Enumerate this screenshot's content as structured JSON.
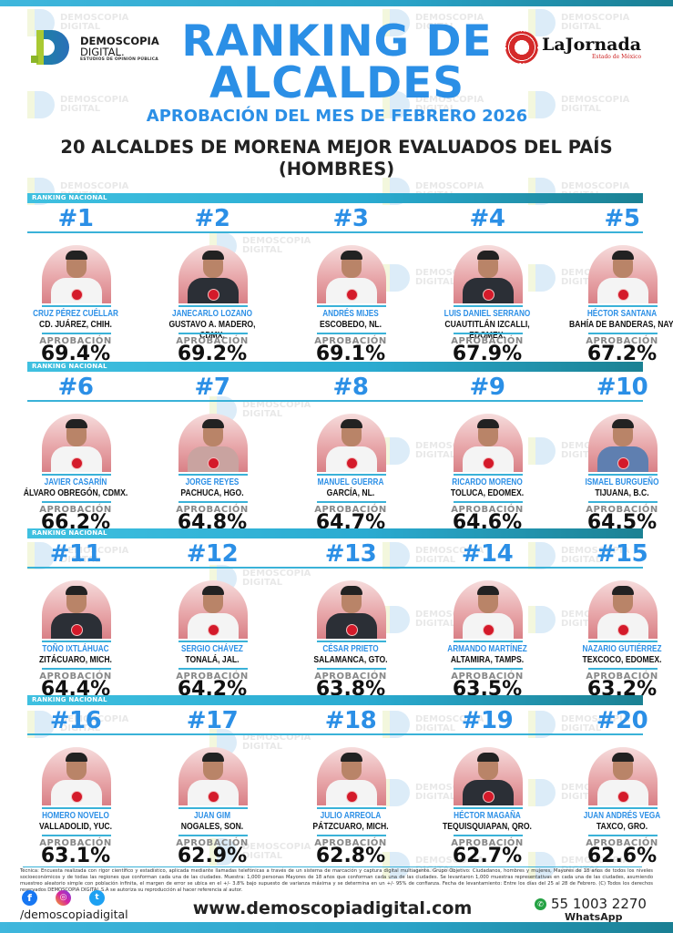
{
  "header": {
    "logo": {
      "line1": "DEMOSCOPIA",
      "line2": "DIGITAL.",
      "tagline": "ESTUDIOS DE OPINIÓN PÚBLICA"
    },
    "title_line1": "RANKING DE",
    "title_line2": "ALCALDES",
    "subtitle": "APROBACIÓN DEL MES DE FEBRERO 2026",
    "headline_line1": "20 ALCALDES DE MORENA MEJOR EVALUADOS DEL PAÍS",
    "headline_line2": "(HOMBRES)",
    "partner": {
      "name": "LaJornada",
      "sub": "Estado de México"
    }
  },
  "watermark": {
    "line1": "DEMOSCOPIA",
    "line2": "DIGITAL"
  },
  "section_label": "RANKING NACIONAL",
  "approval_label": "APROBACIÓN",
  "colors": {
    "accent_blue": "#2b8fe6",
    "bar_cyan": "#3fc0e0",
    "bar_teal": "#1b8193",
    "badge_red": "#d41a2a"
  },
  "rows": [
    {
      "mayors": [
        {
          "rank": "#1",
          "name": "CRUZ PÉREZ CUÉLLAR",
          "city": "CD. JUÁREZ, CHIH.",
          "approval": "69.4%",
          "attire": "light"
        },
        {
          "rank": "#2",
          "name": "JANECARLO LOZANO",
          "city": "GUSTAVO A. MADERO, CDMX.",
          "approval": "69.2%",
          "attire": "dark"
        },
        {
          "rank": "#3",
          "name": "ANDRÉS MIJES",
          "city": "ESCOBEDO, NL.",
          "approval": "69.1%",
          "attire": "light"
        },
        {
          "rank": "#4",
          "name": "LUIS DANIEL SERRANO",
          "city": "CUAUTITLÁN IZCALLI, EDOMEX.",
          "approval": "67.9%",
          "attire": "dark"
        },
        {
          "rank": "#5",
          "name": "HÉCTOR SANTANA",
          "city": "BAHÍA DE BANDERAS, NAY.",
          "approval": "67.2%",
          "attire": "light"
        }
      ]
    },
    {
      "mayors": [
        {
          "rank": "#6",
          "name": "JAVIER CASARÍN",
          "city": "ÁLVARO OBREGÓN, CDMX.",
          "approval": "66.2%",
          "attire": "light"
        },
        {
          "rank": "#7",
          "name": "JORGE REYES",
          "city": "PACHUCA, HGO.",
          "approval": "64.8%",
          "attire": "pink"
        },
        {
          "rank": "#8",
          "name": "MANUEL GUERRA",
          "city": "GARCÍA, NL.",
          "approval": "64.7%",
          "attire": "light"
        },
        {
          "rank": "#9",
          "name": "RICARDO MORENO",
          "city": "TOLUCA, EDOMEX.",
          "approval": "64.6%",
          "attire": "light"
        },
        {
          "rank": "#10",
          "name": "ISMAEL BURGUEÑO",
          "city": "TIJUANA, B.C.",
          "approval": "64.5%",
          "attire": "blue"
        }
      ]
    },
    {
      "mayors": [
        {
          "rank": "#11",
          "name": "TOÑO IXTLÁHUAC",
          "city": "ZITÁCUARO, MICH.",
          "approval": "64.4%",
          "attire": "dark"
        },
        {
          "rank": "#12",
          "name": "SERGIO CHÁVEZ",
          "city": "TONALÁ, JAL.",
          "approval": "64.2%",
          "attire": "light"
        },
        {
          "rank": "#13",
          "name": "CÉSAR PRIETO",
          "city": "SALAMANCA, GTO.",
          "approval": "63.8%",
          "attire": "dark"
        },
        {
          "rank": "#14",
          "name": "ARMANDO MARTÍNEZ",
          "city": "ALTAMIRA, TAMPS.",
          "approval": "63.5%",
          "attire": "light"
        },
        {
          "rank": "#15",
          "name": "NAZARIO GUTIÉRREZ",
          "city": "TEXCOCO, EDOMEX.",
          "approval": "63.2%",
          "attire": "light"
        }
      ]
    },
    {
      "mayors": [
        {
          "rank": "#16",
          "name": "HOMERO NOVELO",
          "city": "VALLADOLID, YUC.",
          "approval": "63.1%",
          "attire": "light"
        },
        {
          "rank": "#17",
          "name": "JUAN GIM",
          "city": "NOGALES, SON.",
          "approval": "62.9%",
          "attire": "light"
        },
        {
          "rank": "#18",
          "name": "JULIO ARREOLA",
          "city": "PÁTZCUARO, MICH.",
          "approval": "62.8%",
          "attire": "light"
        },
        {
          "rank": "#19",
          "name": "HÉCTOR MAGAÑA",
          "city": "TEQUISQUIAPAN, QRO.",
          "approval": "62.7%",
          "attire": "dark"
        },
        {
          "rank": "#20",
          "name": "JUAN ANDRÉS VEGA",
          "city": "TAXCO, GRO.",
          "approval": "62.6%",
          "attire": "light"
        }
      ]
    }
  ],
  "footer": {
    "technical_note": "Técnica: Encuesta realizada con rigor científico y estadístico, aplicada mediante llamadas telefónicas a través de un sistema de marcación y captura digital multiagente. Grupo Objetivo: Ciudadanos, hombres y mujeres, Mayores de 18 años de todos los niveles socioeconómicos y de todas las regiones que conforman cada una de las ciudades. Muestra: 1,000 personas Mayores de 18 años que conforman cada una de las ciudades. Se levantaron 1,000 muestras representativas en cada una de las ciudades, asumiendo muestreo aleatorio simple con población infinita, el margen de error se ubica en el +/- 3.8% bajo supuesto de varianza máxima y se determina en un +/- 95% de confianza. Fecha de levantamiento: Entre los días del 25 al 28 de Febrero. (C) Todos los derechos reservados DEMOSCOPIA DIGITAL,S.A se autoriza su reproducción al hacer referencia al autor.",
    "social_icons": {
      "facebook": "f",
      "instagram": "◎",
      "twitter": "t"
    },
    "handle": "/demoscopiadigital",
    "website": "www.demoscopiadigital.com",
    "whatsapp_icon": "✆",
    "whatsapp_number": "55 1003 2270",
    "whatsapp_label": "WhatsApp"
  }
}
